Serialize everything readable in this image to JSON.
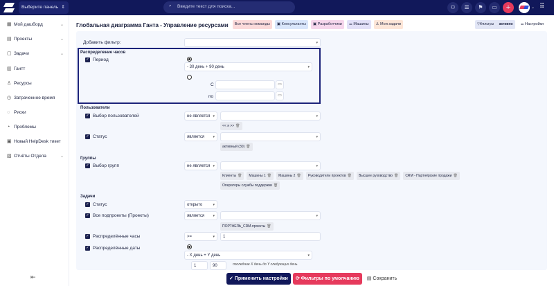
{
  "topbar": {
    "panel_select": "Выберите панель",
    "search_placeholder": "Введите текст для поиска...",
    "icons": [
      "user-icon",
      "tasks-icon",
      "flag-icon",
      "calendar-icon",
      "plus-icon",
      "avatar",
      "grid-icon"
    ],
    "accent": "#e63a5c",
    "bg": "#11185a"
  },
  "sidebar": {
    "items": [
      {
        "label": "Мой дашборд",
        "icon": "dashboard-icon",
        "chevron": true
      },
      {
        "label": "Проекты",
        "icon": "projects-icon",
        "chevron": true
      },
      {
        "label": "Задачи",
        "icon": "clipboard-icon",
        "chevron": true
      },
      {
        "label": "Гантт",
        "icon": "gantt-icon",
        "chevron": false
      },
      {
        "label": "Ресурсы",
        "icon": "person-icon",
        "chevron": false
      },
      {
        "label": "Затраченное время",
        "icon": "clock-icon",
        "chevron": false
      },
      {
        "label": "Риски",
        "icon": "risk-icon",
        "chevron": false
      },
      {
        "label": "Проблемы",
        "icon": "problem-icon",
        "chevron": false
      },
      {
        "label": "Новый HelpDesk тикет",
        "icon": "ticket-icon",
        "chevron": false
      },
      {
        "label": "Отчёты Отдела",
        "icon": "reports-icon",
        "chevron": true
      }
    ],
    "collapse_icon": "collapse-icon"
  },
  "header": {
    "title": "Глобальная диаграмма Ганта - Управление ресурсами",
    "chips": [
      {
        "label": "Все члены команды",
        "color": "#fbdada"
      },
      {
        "label": "Консультанты",
        "color": "#d9e6fb"
      },
      {
        "label": "Разработчики",
        "color": "#f6d6ec"
      },
      {
        "label": "Машины",
        "color": "#e2e0f8"
      },
      {
        "label": "Мои задачи",
        "color": "#fde6d8"
      }
    ],
    "filters_label": "Фильтры",
    "filters_state": "активно",
    "settings_label": "Настройки"
  },
  "filters": {
    "add_filter_label": "Добавить фильтр:",
    "hours": {
      "section": "Распределение часов",
      "period_label": "Период",
      "period_value": "- 30 день + 90 день",
      "from_label": "С",
      "to_label": "по"
    },
    "users": {
      "section": "Пользователи",
      "select_label": "Выбор пользователей",
      "select_op": "не является",
      "select_chip": "<< я >>",
      "status_label": "Статус",
      "status_op": "является",
      "status_chip": "активный (30)"
    },
    "groups": {
      "section": "Группы",
      "select_label": "Выбор групп",
      "select_op": "не является",
      "chips": [
        "Клиенты",
        "Машины 1",
        "Машины 2",
        "Руководители проектов",
        "Высшее руководство",
        "CRM - Партнёрские продажи",
        "Операторы службы поддержки"
      ]
    },
    "tasks": {
      "section": "Задачи",
      "status_label": "Статус",
      "status_op": "открыто",
      "subprojects_label": "Все подпроекты (Проекты)",
      "subprojects_op": "является",
      "subprojects_chip": "ПОРТФЕЛЬ_CRM-проекты",
      "hours_label": "Распределённые часы",
      "hours_op": ">=",
      "hours_value": "1",
      "dates_label": "Распределённые даты",
      "dates_value": "- X день + Y день",
      "x_value": "1",
      "y_value": "90",
      "dates_hint": "последние X день до Y следующих день"
    }
  },
  "footer": {
    "apply": "Применить настройки",
    "defaults": "Фильтры по умолчанию",
    "save": "Сохранить"
  }
}
